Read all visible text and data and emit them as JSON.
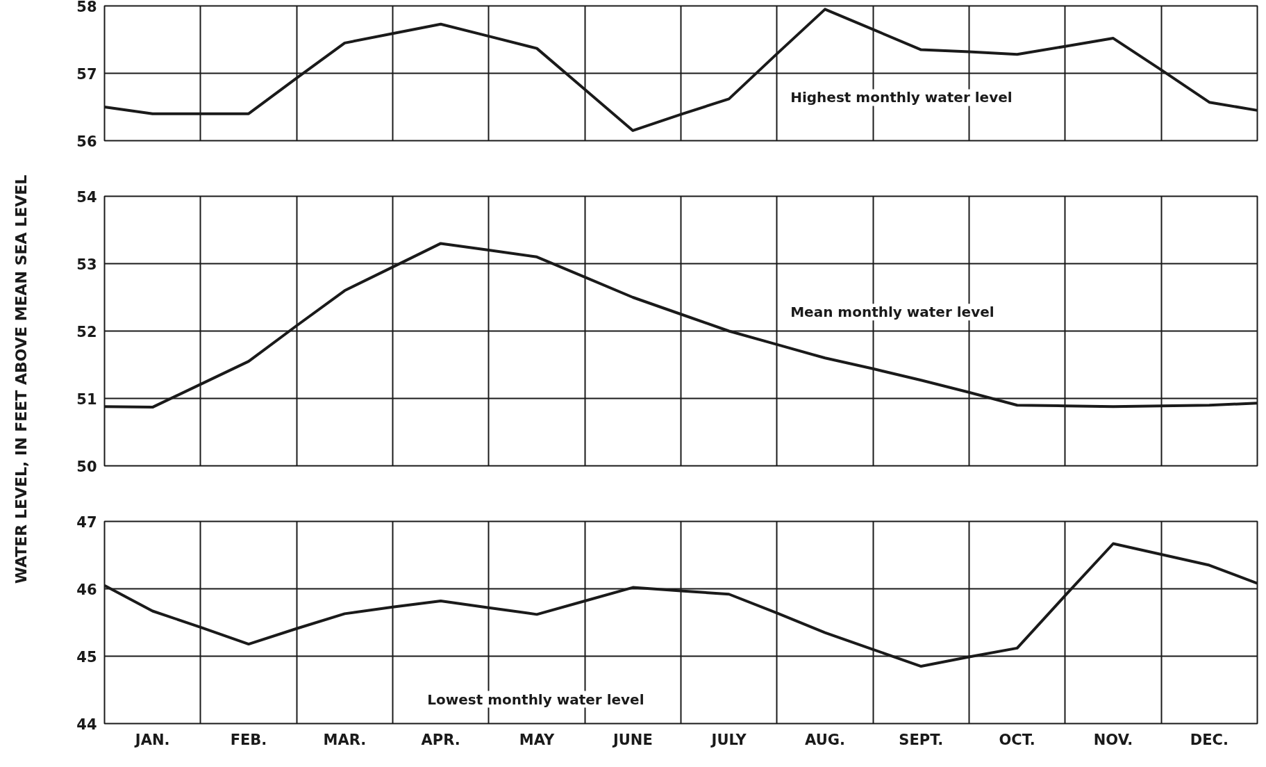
{
  "chart_data": [
    {
      "type": "line",
      "ylim": [
        56,
        58
      ],
      "yticks": [
        56,
        57,
        58
      ],
      "tick_labels": "y",
      "grid": true,
      "categories": [
        null,
        null,
        null,
        null,
        null,
        null,
        null,
        null,
        null,
        null,
        null,
        null,
        null,
        null,
        null,
        null,
        null,
        null,
        null,
        null,
        null,
        null,
        null,
        null,
        null
      ],
      "series": [
        {
          "color": "#1a1a1a",
          "values": [
            56.5,
            56.4,
            56.4,
            56.4,
            56.93,
            57.45,
            57.59,
            57.73,
            57.55,
            57.37,
            56.76,
            56.15,
            56.39,
            56.62,
            57.29,
            57.95,
            57.65,
            57.35,
            57.32,
            57.28,
            57.4,
            57.52,
            57.05,
            56.57,
            56.45
          ]
        }
      ],
      "annotations": [
        "Highest monthly water level"
      ]
    },
    {
      "type": "line",
      "ylim": [
        50,
        54
      ],
      "yticks": [
        50,
        51,
        52,
        53,
        54
      ],
      "tick_labels": "y",
      "grid": true,
      "ylabel": "WATER LEVEL, IN FEET ABOVE MEAN SEA LEVEL",
      "categories": [
        null,
        null,
        null,
        null,
        null,
        null,
        null,
        null,
        null,
        null,
        null,
        null,
        null,
        null,
        null,
        null,
        null,
        null,
        null,
        null,
        null,
        null,
        null,
        null,
        null
      ],
      "series": [
        {
          "color": "#1a1a1a",
          "values": [
            50.88,
            50.87,
            51.21,
            51.55,
            52.08,
            52.6,
            52.95,
            53.3,
            53.2,
            53.1,
            52.8,
            52.5,
            52.25,
            52.0,
            51.8,
            51.6,
            51.44,
            51.27,
            51.09,
            50.9,
            50.89,
            50.88,
            50.89,
            50.9,
            50.93
          ]
        }
      ],
      "annotations": [
        "Mean monthly water level"
      ]
    },
    {
      "type": "line",
      "ylim": [
        44,
        47
      ],
      "yticks": [
        44,
        45,
        46,
        47
      ],
      "grid": true,
      "categories": [
        null,
        "JAN.",
        null,
        "FEB.",
        null,
        "MAR.",
        null,
        "APR.",
        null,
        "MAY",
        null,
        "JUNE",
        null,
        "JULY",
        null,
        "AUG.",
        null,
        "SEPT.",
        null,
        "OCT.",
        null,
        "NOV.",
        null,
        "DEC.",
        null
      ],
      "series": [
        {
          "color": "#1a1a1a",
          "values": [
            46.05,
            45.67,
            45.43,
            45.18,
            45.41,
            45.63,
            45.73,
            45.82,
            45.72,
            45.62,
            45.82,
            46.02,
            45.97,
            45.92,
            45.64,
            45.35,
            45.1,
            44.85,
            44.99,
            45.12,
            45.9,
            46.67,
            46.51,
            46.35,
            46.08
          ]
        }
      ],
      "annotations": [
        "Lowest monthly water level"
      ]
    }
  ]
}
